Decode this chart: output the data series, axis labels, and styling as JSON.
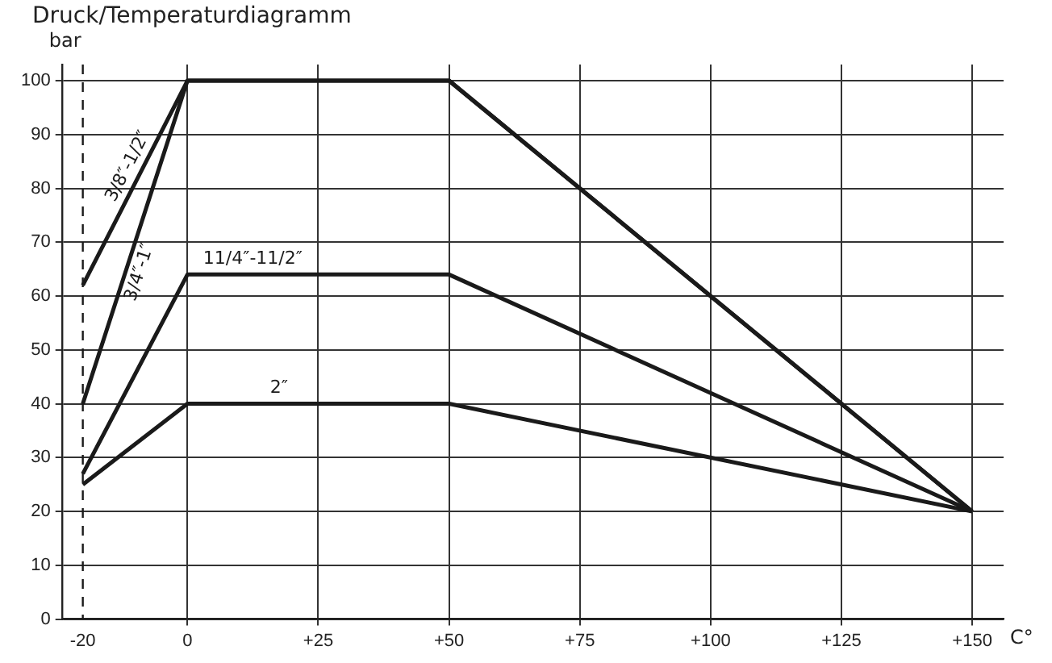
{
  "chart_data": {
    "type": "line",
    "title": "Druck/Temperaturdiagramm",
    "xlabel": "C°",
    "ylabel": "bar",
    "x": [
      -20,
      0,
      50,
      150
    ],
    "series": [
      {
        "name": "3/8″-1/2″",
        "color": "#1a1a1a",
        "values": [
          62,
          100,
          100,
          20
        ]
      },
      {
        "name": "3/4″-1″",
        "color": "#1a1a1a",
        "values": [
          40,
          100,
          100,
          20
        ]
      },
      {
        "name": "11/4″-11/2″",
        "color": "#1a1a1a",
        "values": [
          27,
          64,
          64,
          20
        ]
      },
      {
        "name": "2″",
        "color": "#1a1a1a",
        "values": [
          25,
          40,
          40,
          20
        ]
      }
    ],
    "xlim": [
      -24,
      156
    ],
    "ylim": [
      0,
      103
    ],
    "xticks": [
      -20,
      0,
      {
        "value": 25,
        "label": "+25"
      },
      {
        "value": 50,
        "label": "+50"
      },
      {
        "value": 75,
        "label": "+75"
      },
      {
        "value": 100,
        "label": "+100"
      },
      {
        "value": 125,
        "label": "+125"
      },
      {
        "value": 150,
        "label": "+150"
      }
    ],
    "yticks": [
      0,
      10,
      20,
      30,
      40,
      50,
      60,
      70,
      80,
      90,
      100
    ],
    "ref_lines": [
      {
        "axis": "x",
        "value": -20,
        "line_style": "dashed",
        "color": "#1a1a1a"
      }
    ],
    "grid": true,
    "legend": false,
    "marker": "none",
    "line_style": "solid"
  }
}
